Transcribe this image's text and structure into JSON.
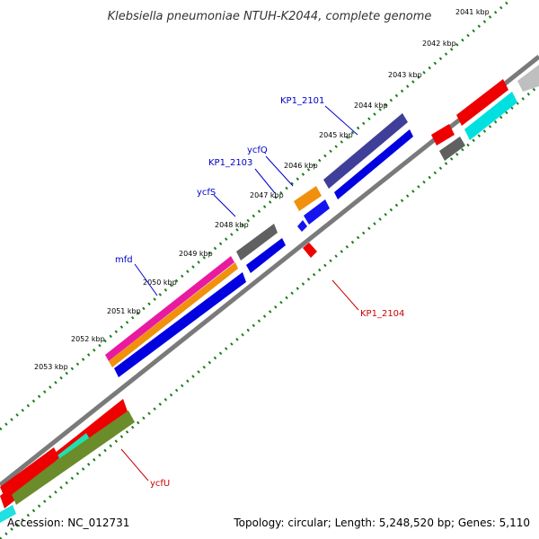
{
  "title": "Klebsiella pneumoniae NTUH-K2044, complete genome",
  "footer": {
    "accession": "Accession: NC_012731",
    "summary": "Topology: circular; Length: 5,248,520 bp; Genes: 5,110"
  },
  "ticks": [
    "2041 kbp",
    "2042 kbp",
    "2043 kbp",
    "2044 kbp",
    "2045 kbp",
    "2046 kbp",
    "2047 kbp",
    "2048 kbp",
    "2049 kbp",
    "2050 kbp",
    "2051 kbp",
    "2052 kbp",
    "2053 kbp"
  ],
  "gene_labels": [
    {
      "text": "KP1_2101",
      "color": "#0000cc"
    },
    {
      "text": "ycfQ",
      "color": "#0000cc"
    },
    {
      "text": "KP1_2103",
      "color": "#0000cc"
    },
    {
      "text": "ycfS",
      "color": "#0000cc"
    },
    {
      "text": "mfd",
      "color": "#0000cc"
    },
    {
      "text": "KP1_2104",
      "color": "#cc0000"
    },
    {
      "text": "ycfU",
      "color": "#cc0000"
    }
  ],
  "colors": {
    "backbone": "#7a7a7a",
    "ticks": "#1a7f1a",
    "label_line_forward": "#0000cc",
    "label_line_reverse": "#cc0000"
  }
}
